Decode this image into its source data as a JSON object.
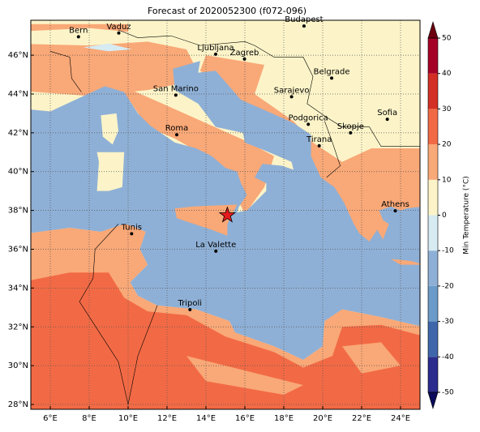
{
  "chart_data": {
    "type": "map",
    "title": "Forecast of 2020052300 (f072-096)",
    "xlim": [
      5,
      25
    ],
    "ylim": [
      27.75,
      47.8
    ],
    "xticks": [
      {
        "value": 6,
        "label": "6°E"
      },
      {
        "value": 8,
        "label": "8°E"
      },
      {
        "value": 10,
        "label": "10°E"
      },
      {
        "value": 12,
        "label": "12°E"
      },
      {
        "value": 14,
        "label": "14°E"
      },
      {
        "value": 16,
        "label": "16°E"
      },
      {
        "value": 18,
        "label": "18°E"
      },
      {
        "value": 20,
        "label": "20°E"
      },
      {
        "value": 22,
        "label": "22°E"
      },
      {
        "value": 24,
        "label": "24°E"
      }
    ],
    "yticks": [
      {
        "value": 28,
        "label": "28°N"
      },
      {
        "value": 30,
        "label": "30°N"
      },
      {
        "value": 32,
        "label": "32°N"
      },
      {
        "value": 34,
        "label": "34°N"
      },
      {
        "value": 36,
        "label": "36°N"
      },
      {
        "value": 38,
        "label": "38°N"
      },
      {
        "value": 40,
        "label": "40°N"
      },
      {
        "value": 42,
        "label": "42°N"
      },
      {
        "value": 44,
        "label": "44°N"
      },
      {
        "value": 46,
        "label": "46°N"
      }
    ],
    "grid": true,
    "cities": [
      {
        "name": "Bern",
        "lon": 7.45,
        "lat": 46.95
      },
      {
        "name": "Vaduz",
        "lon": 9.52,
        "lat": 47.14
      },
      {
        "name": "Budapest",
        "lon": 19.04,
        "lat": 47.5
      },
      {
        "name": "Ljubljana",
        "lon": 14.5,
        "lat": 46.05
      },
      {
        "name": "Zagreb",
        "lon": 15.98,
        "lat": 45.8
      },
      {
        "name": "Belgrade",
        "lon": 20.46,
        "lat": 44.82
      },
      {
        "name": "San Marino",
        "lon": 12.45,
        "lat": 43.94
      },
      {
        "name": "Sarajevo",
        "lon": 18.4,
        "lat": 43.86
      },
      {
        "name": "Sofia",
        "lon": 23.32,
        "lat": 42.7
      },
      {
        "name": "Podgorica",
        "lon": 19.26,
        "lat": 42.44
      },
      {
        "name": "Skopje",
        "lon": 21.43,
        "lat": 42.0
      },
      {
        "name": "Roma",
        "lon": 12.5,
        "lat": 41.9
      },
      {
        "name": "Tirana",
        "lon": 19.82,
        "lat": 41.33
      },
      {
        "name": "Athens",
        "lon": 23.73,
        "lat": 37.98
      },
      {
        "name": "Tunis",
        "lon": 10.18,
        "lat": 36.8
      },
      {
        "name": "La Valette",
        "lon": 14.51,
        "lat": 35.9
      },
      {
        "name": "Tripoli",
        "lon": 13.18,
        "lat": 32.89
      }
    ],
    "marker": {
      "lon": 15.1,
      "lat": 37.75,
      "color": "#e41a1c"
    },
    "colorbar": {
      "label": "Min Temperature (°C)",
      "bounds": [
        -50,
        -40,
        -30,
        -20,
        -10,
        0,
        10,
        20,
        30,
        40,
        50
      ],
      "colors": [
        "#2c2c8e",
        "#3f66ab",
        "#6b9bc8",
        "#8fb0d6",
        "#d6ebf2",
        "#fcf4c8",
        "#f9a877",
        "#f26a45",
        "#d42f24",
        "#a50026"
      ],
      "under_color": "#0a0a5a",
      "over_color": "#6b0010",
      "ticks": [
        -50,
        -40,
        -30,
        -20,
        -10,
        0,
        10,
        20,
        30,
        40,
        50
      ]
    }
  }
}
